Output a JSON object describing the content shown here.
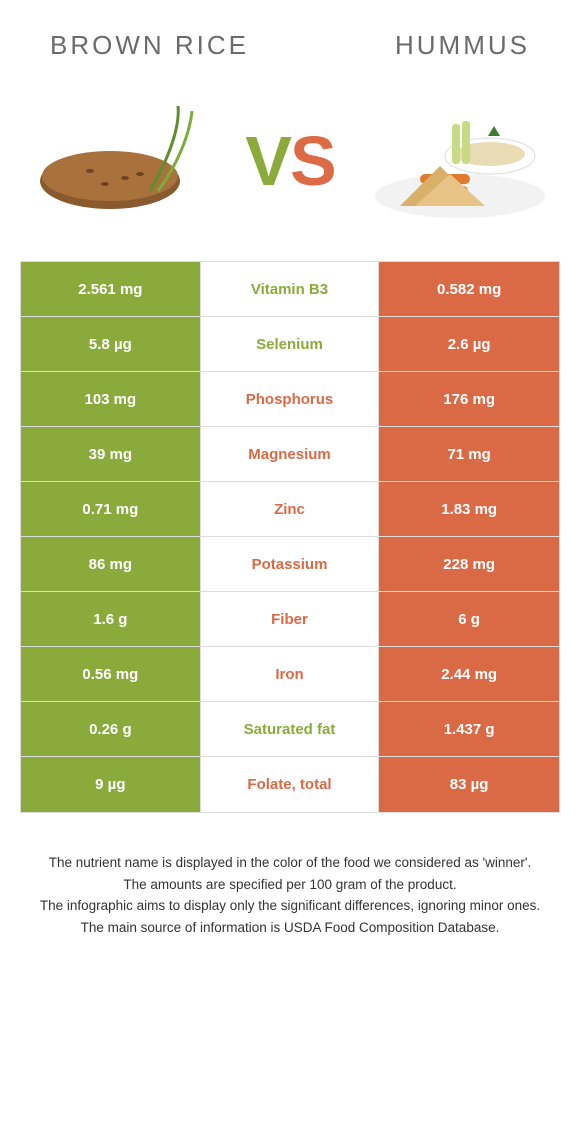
{
  "colors": {
    "left": "#8aab3b",
    "right": "#da6a46",
    "mid_bg": "#ffffff",
    "row_border": "#dcdcdc",
    "header_text": "#6b6b6b",
    "footer_text": "#333333"
  },
  "header": {
    "left_title": "BROWN RICE",
    "right_title": "HUMMUS"
  },
  "vs": {
    "v": "V",
    "s": "S"
  },
  "table": {
    "rows": [
      {
        "left": "2.561 mg",
        "label": "Vitamin B3",
        "right": "0.582 mg",
        "winner": "left"
      },
      {
        "left": "5.8 µg",
        "label": "Selenium",
        "right": "2.6 µg",
        "winner": "left"
      },
      {
        "left": "103 mg",
        "label": "Phosphorus",
        "right": "176 mg",
        "winner": "right"
      },
      {
        "left": "39 mg",
        "label": "Magnesium",
        "right": "71 mg",
        "winner": "right"
      },
      {
        "left": "0.71 mg",
        "label": "Zinc",
        "right": "1.83 mg",
        "winner": "right"
      },
      {
        "left": "86 mg",
        "label": "Potassium",
        "right": "228 mg",
        "winner": "right"
      },
      {
        "left": "1.6 g",
        "label": "Fiber",
        "right": "6 g",
        "winner": "right"
      },
      {
        "left": "0.56 mg",
        "label": "Iron",
        "right": "2.44 mg",
        "winner": "right"
      },
      {
        "left": "0.26 g",
        "label": "Saturated fat",
        "right": "1.437 g",
        "winner": "left"
      },
      {
        "left": "9 µg",
        "label": "Folate, total",
        "right": "83 µg",
        "winner": "right"
      }
    ]
  },
  "footer": {
    "lines": [
      "The nutrient name is displayed in the color of the food we considered as 'winner'.",
      "The amounts are specified per 100 gram of the product.",
      "The infographic aims to display only the significant differences, ignoring minor ones.",
      "The main source of information is USDA Food Composition Database."
    ]
  }
}
